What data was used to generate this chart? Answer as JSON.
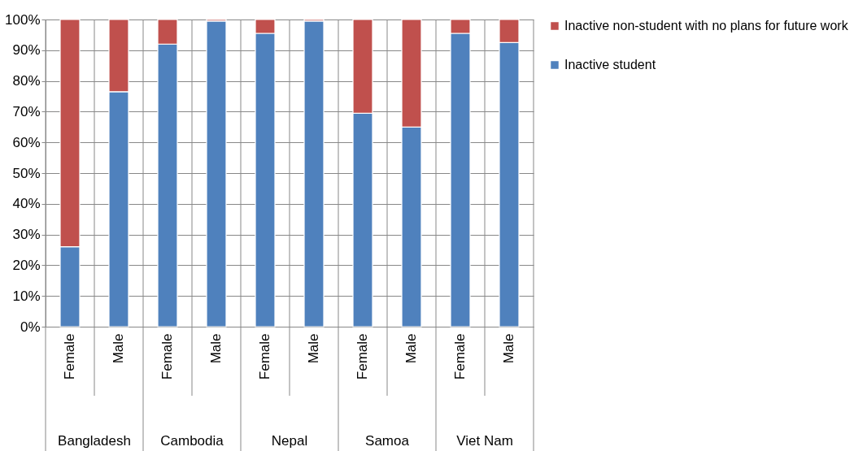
{
  "chart_data": {
    "type": "bar",
    "stacked": true,
    "categories": [
      "Female",
      "Male",
      "Female",
      "Male",
      "Female",
      "Male",
      "Female",
      "Male",
      "Female",
      "Male"
    ],
    "annotations": [
      "Bangladesh",
      "Cambodia",
      "Nepal",
      "Samoa",
      "Viet Nam"
    ],
    "series": [
      {
        "name": "Inactive student",
        "color": "#4f81bd",
        "values": [
          26,
          76.5,
          92,
          99.5,
          95.5,
          99.5,
          69.5,
          65,
          95.5,
          92.5
        ]
      },
      {
        "name": "Inactive non-student with no plans for future work",
        "color": "#c0504d",
        "values": [
          74,
          23.5,
          8,
          0.5,
          4.5,
          0.5,
          30.5,
          35,
          4.5,
          7.5
        ]
      }
    ],
    "ylim": [
      0,
      100
    ],
    "yticks": [
      {
        "value": 0,
        "label": "0%"
      },
      {
        "value": 10,
        "label": "10%"
      },
      {
        "value": 20,
        "label": "20%"
      },
      {
        "value": 30,
        "label": "30%"
      },
      {
        "value": 40,
        "label": "40%"
      },
      {
        "value": 50,
        "label": "50%"
      },
      {
        "value": 60,
        "label": "60%"
      },
      {
        "value": 70,
        "label": "70%"
      },
      {
        "value": 80,
        "label": "80%"
      },
      {
        "value": 90,
        "label": "90%"
      },
      {
        "value": 100,
        "label": "100%"
      }
    ],
    "grid": true,
    "legend": "right"
  }
}
